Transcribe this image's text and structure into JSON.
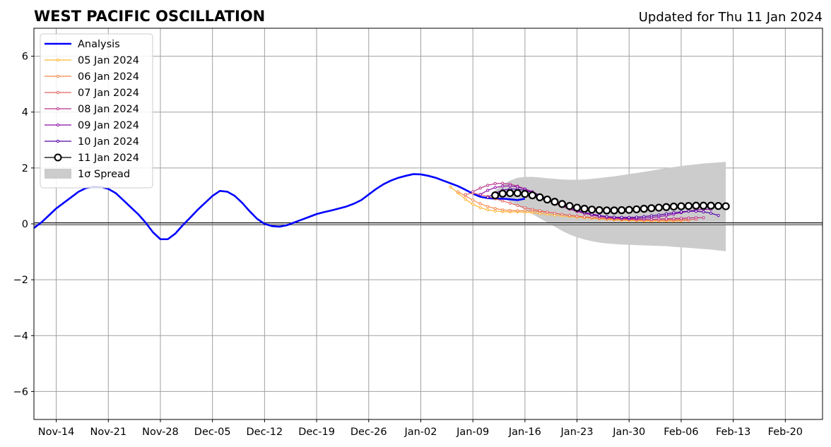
{
  "chart_data": {
    "type": "line",
    "title": "WEST PACIFIC OSCILLATION",
    "subtitle": "Updated for Thu 11 Jan 2024",
    "xlabel": "",
    "ylabel": "",
    "x_range": [
      "2023-11-11",
      "2024-02-25"
    ],
    "ylim": [
      -7,
      7
    ],
    "yticks": [
      -6,
      -4,
      -2,
      0,
      2,
      4,
      6
    ],
    "ytick_labels": [
      "−6",
      "−4",
      "−2",
      "0",
      "2",
      "4",
      "6"
    ],
    "xticks": [
      "2023-11-14",
      "2023-11-21",
      "2023-11-28",
      "2023-12-05",
      "2023-12-12",
      "2023-12-19",
      "2023-12-26",
      "2024-01-02",
      "2024-01-09",
      "2024-01-16",
      "2024-01-23",
      "2024-01-30",
      "2024-02-06",
      "2024-02-13",
      "2024-02-20"
    ],
    "xtick_labels": [
      "Nov-14",
      "Nov-21",
      "Nov-28",
      "Dec-05",
      "Dec-12",
      "Dec-19",
      "Dec-26",
      "Jan-02",
      "Jan-09",
      "Jan-16",
      "Jan-23",
      "Jan-30",
      "Feb-06",
      "Feb-13",
      "Feb-20"
    ],
    "grid": true,
    "legend_position": "top-left",
    "analysis": {
      "name": "Analysis",
      "color": "#0000ff",
      "start": "2023-11-11",
      "values": [
        -0.15,
        0.05,
        0.3,
        0.55,
        0.75,
        0.95,
        1.15,
        1.28,
        1.33,
        1.32,
        1.25,
        1.1,
        0.85,
        0.6,
        0.35,
        0.05,
        -0.3,
        -0.55,
        -0.55,
        -0.35,
        -0.05,
        0.22,
        0.5,
        0.75,
        1.0,
        1.18,
        1.15,
        1.0,
        0.75,
        0.45,
        0.18,
        0.0,
        -0.08,
        -0.1,
        -0.05,
        0.05,
        0.15,
        0.25,
        0.35,
        0.42,
        0.48,
        0.55,
        0.62,
        0.72,
        0.85,
        1.05,
        1.25,
        1.42,
        1.55,
        1.65,
        1.72,
        1.78,
        1.77,
        1.72,
        1.65,
        1.55,
        1.45,
        1.35,
        1.22,
        1.08,
        0.97,
        0.92,
        0.9,
        0.9,
        0.88,
        0.85,
        0.9
      ]
    },
    "forecasts": [
      {
        "name": "05 Jan 2024",
        "color": "#fdb42f",
        "start": "2024-01-06",
        "values": [
          1.32,
          1.1,
          0.88,
          0.7,
          0.58,
          0.5,
          0.46,
          0.44,
          0.43,
          0.43,
          0.42,
          0.4,
          0.37,
          0.34,
          0.31,
          0.28,
          0.26,
          0.24,
          0.22,
          0.2,
          0.18,
          0.16,
          0.14,
          0.13,
          0.12,
          0.11,
          0.1,
          0.1,
          0.1,
          0.1,
          0.1,
          0.1
        ]
      },
      {
        "name": "06 Jan 2024",
        "color": "#f48849",
        "start": "2024-01-07",
        "values": [
          1.15,
          1.0,
          0.85,
          0.72,
          0.62,
          0.55,
          0.5,
          0.48,
          0.47,
          0.47,
          0.46,
          0.44,
          0.41,
          0.38,
          0.34,
          0.31,
          0.28,
          0.25,
          0.22,
          0.2,
          0.18,
          0.16,
          0.15,
          0.14,
          0.13,
          0.12,
          0.12,
          0.12,
          0.12,
          0.12,
          0.12,
          0.12
        ]
      },
      {
        "name": "07 Jan 2024",
        "color": "#e16462",
        "start": "2024-01-08",
        "values": [
          1.05,
          1.1,
          1.05,
          0.98,
          0.9,
          0.82,
          0.74,
          0.66,
          0.58,
          0.52,
          0.47,
          0.42,
          0.38,
          0.34,
          0.3,
          0.27,
          0.25,
          0.23,
          0.21,
          0.2,
          0.19,
          0.18,
          0.17,
          0.17,
          0.16,
          0.16,
          0.16,
          0.16,
          0.16,
          0.16,
          0.16,
          0.16
        ]
      },
      {
        "name": "08 Jan 2024",
        "color": "#b83289",
        "start": "2024-01-09",
        "values": [
          1.15,
          1.28,
          1.38,
          1.44,
          1.45,
          1.42,
          1.35,
          1.25,
          1.12,
          0.98,
          0.85,
          0.73,
          0.62,
          0.52,
          0.44,
          0.37,
          0.31,
          0.26,
          0.23,
          0.2,
          0.18,
          0.17,
          0.16,
          0.16,
          0.16,
          0.17,
          0.18,
          0.19,
          0.2,
          0.21,
          0.22,
          0.22
        ]
      },
      {
        "name": "09 Jan 2024",
        "color": "#8b0aa5",
        "start": "2024-01-10",
        "values": [
          1.05,
          1.2,
          1.3,
          1.35,
          1.36,
          1.32,
          1.25,
          1.15,
          1.02,
          0.9,
          0.78,
          0.67,
          0.57,
          0.48,
          0.41,
          0.35,
          0.3,
          0.26,
          0.23,
          0.21,
          0.2,
          0.2,
          0.21,
          0.23,
          0.26,
          0.3,
          0.35,
          0.4,
          0.45,
          0.5,
          0.52,
          0.52
        ]
      },
      {
        "name": "10 Jan 2024",
        "color": "#5302a3",
        "start": "2024-01-11",
        "values": [
          0.95,
          1.1,
          1.2,
          1.25,
          1.24,
          1.2,
          1.12,
          1.02,
          0.9,
          0.78,
          0.66,
          0.56,
          0.47,
          0.4,
          0.34,
          0.29,
          0.26,
          0.24,
          0.23,
          0.23,
          0.24,
          0.26,
          0.29,
          0.32,
          0.36,
          0.4,
          0.43,
          0.45,
          0.45,
          0.43,
          0.38,
          0.3
        ]
      },
      {
        "name": "11 Jan 2024",
        "color": "#000000",
        "start": "2024-01-12",
        "values": [
          1.02,
          1.08,
          1.1,
          1.1,
          1.07,
          1.02,
          0.95,
          0.87,
          0.79,
          0.71,
          0.64,
          0.58,
          0.54,
          0.51,
          0.49,
          0.48,
          0.48,
          0.49,
          0.5,
          0.52,
          0.54,
          0.56,
          0.58,
          0.6,
          0.62,
          0.63,
          0.64,
          0.65,
          0.65,
          0.65,
          0.64,
          0.63
        ]
      }
    ],
    "spread": {
      "name": "1σ Spread",
      "color": "#cccccc",
      "start": "2024-01-12",
      "upper": [
        1.2,
        1.4,
        1.55,
        1.65,
        1.68,
        1.68,
        1.66,
        1.63,
        1.61,
        1.59,
        1.58,
        1.58,
        1.59,
        1.61,
        1.64,
        1.67,
        1.7,
        1.74,
        1.78,
        1.82,
        1.86,
        1.9,
        1.95,
        1.99,
        2.03,
        2.07,
        2.1,
        2.13,
        2.16,
        2.18,
        2.2,
        2.22
      ],
      "lower": [
        0.95,
        0.9,
        0.8,
        0.65,
        0.5,
        0.35,
        0.2,
        0.05,
        -0.1,
        -0.25,
        -0.38,
        -0.48,
        -0.56,
        -0.62,
        -0.67,
        -0.7,
        -0.72,
        -0.74,
        -0.75,
        -0.76,
        -0.77,
        -0.78,
        -0.79,
        -0.8,
        -0.82,
        -0.84,
        -0.86,
        -0.88,
        -0.9,
        -0.92,
        -0.95,
        -0.98
      ]
    }
  }
}
